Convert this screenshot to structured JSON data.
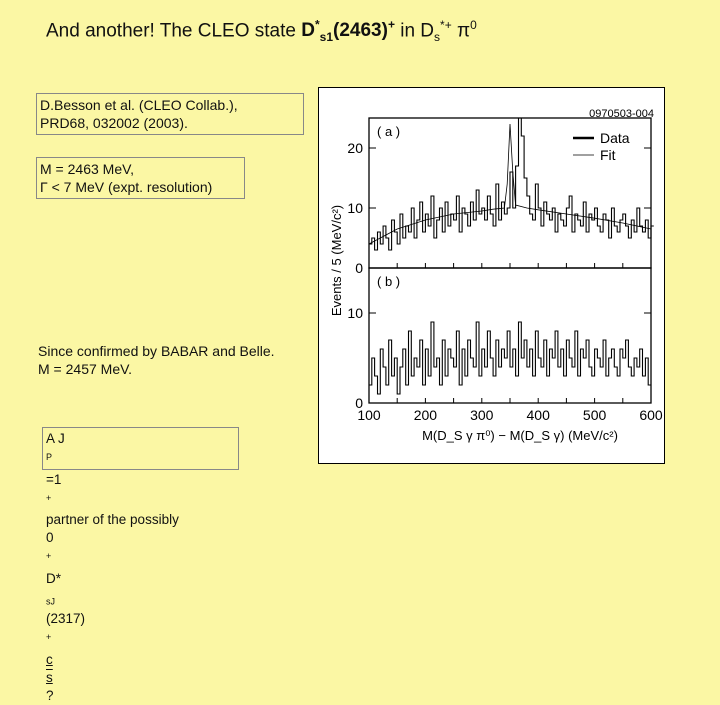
{
  "title": {
    "prefix": "And another!  The CLEO state  ",
    "state_main": "D",
    "state_sup1": "*",
    "state_sub": "s1",
    "state_mass": "(2463)",
    "state_sup2": "+",
    "mid": "  in  D",
    "ds_sub": "s",
    "ds_sup": "*+",
    "pi_text": " π",
    "pi_sup": "0"
  },
  "reference_box": {
    "line1": "D.Besson et al. (CLEO Collab.),",
    "line2": "PRD68, 032002 (2003)."
  },
  "mass_box": {
    "line1": "M = 2463 MeV,",
    "line2": "Γ < 7 MeV (expt. resolution)"
  },
  "confirm_text": {
    "line1": "Since confirmed by BABAR and Belle.",
    "line2": "M = 2457 MeV."
  },
  "partner_box": {
    "line1": "A J",
    "line1_sup": "P",
    "line1_rest": "=1",
    "line1_sup2": "+",
    "line1_end": "partner of the possibly",
    "line2_a": "0",
    "line2_a_sup": "+",
    "line2_b": " D*",
    "line2_sub": "sJ",
    "line2_c": "(2317)",
    "line2_sup": "+",
    "line2_d": " c",
    "line2_s": "s",
    "line2_end": " ?"
  },
  "chart_data": [
    {
      "type": "histogram",
      "panel_label": "( a )",
      "figure_id": "0970503-004",
      "legend": [
        {
          "name": "Data",
          "color": "#000000"
        },
        {
          "name": "Fit",
          "color": "#000000"
        }
      ],
      "legend_placement": "top-right",
      "ylabel": "Events / 5 (MeV/c²)",
      "ylim": [
        0,
        25
      ],
      "yticks": [
        0,
        10,
        20
      ],
      "xlim": [
        100,
        600
      ],
      "x_bin_edges_start": 100,
      "bin_width": 5,
      "values": [
        4,
        5,
        3,
        6,
        4,
        7,
        5,
        3,
        8,
        6,
        4,
        9,
        5,
        7,
        6,
        10,
        5,
        8,
        11,
        6,
        9,
        7,
        12,
        5,
        8,
        10,
        6,
        11,
        7,
        9,
        8,
        12,
        6,
        10,
        9,
        7,
        11,
        8,
        13,
        9,
        10,
        8,
        12,
        9,
        7,
        14,
        8,
        11,
        9,
        10,
        16,
        10,
        17,
        27,
        22,
        15,
        12,
        9,
        8,
        14,
        10,
        7,
        11,
        9,
        8,
        10,
        6,
        9,
        8,
        7,
        10,
        12,
        6,
        9,
        8,
        7,
        11,
        6,
        9,
        8,
        10,
        7,
        6,
        9,
        8,
        5,
        10,
        7,
        6,
        8,
        9,
        7,
        5,
        8,
        6,
        10,
        7,
        6,
        8,
        5,
        7
      ],
      "fit_x": [
        100,
        150,
        200,
        250,
        300,
        320,
        340,
        345,
        350,
        355,
        360,
        380,
        400,
        450,
        500,
        550,
        600
      ],
      "fit_y": [
        4,
        6.5,
        8,
        9,
        9.5,
        9.8,
        10,
        14,
        24,
        16,
        10.5,
        10,
        9.7,
        9,
        8.3,
        7.5,
        6.5
      ]
    },
    {
      "type": "histogram",
      "panel_label": "( b )",
      "ylim": [
        0,
        15
      ],
      "yticks": [
        0,
        10
      ],
      "xlim": [
        100,
        600
      ],
      "xticks": [
        100,
        200,
        300,
        400,
        500,
        600
      ],
      "xlabel": "M(D_S γ π⁰) − M(D_S γ)  (MeV/c²)",
      "x_bin_edges_start": 100,
      "bin_width": 5,
      "values": [
        2,
        5,
        3,
        1,
        6,
        4,
        2,
        7,
        3,
        5,
        1,
        4,
        6,
        2,
        8,
        3,
        5,
        4,
        7,
        2,
        6,
        3,
        9,
        4,
        5,
        2,
        7,
        3,
        6,
        5,
        4,
        8,
        2,
        6,
        3,
        7,
        5,
        4,
        9,
        3,
        6,
        4,
        8,
        5,
        3,
        7,
        4,
        6,
        5,
        8,
        4,
        6,
        3,
        9,
        5,
        7,
        4,
        6,
        3,
        8,
        5,
        4,
        7,
        3,
        6,
        5,
        8,
        4,
        6,
        3,
        7,
        5,
        4,
        8,
        3,
        6,
        5,
        7,
        4,
        3,
        6,
        5,
        4,
        7,
        3,
        5,
        6,
        4,
        3,
        6,
        5,
        7,
        4,
        3,
        5,
        4,
        6,
        3,
        5,
        2
      ]
    }
  ]
}
